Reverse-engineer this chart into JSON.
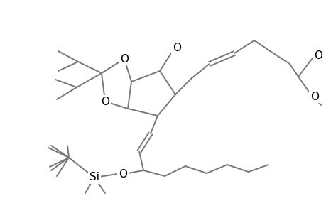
{
  "background_color": "#ffffff",
  "line_color": "#777777",
  "atom_color": "#000000",
  "line_width": 1.4,
  "font_size": 10,
  "figsize": [
    4.6,
    3.0
  ],
  "dpi": 100,
  "xlim": [
    0,
    460
  ],
  "ylim": [
    0,
    300
  ]
}
